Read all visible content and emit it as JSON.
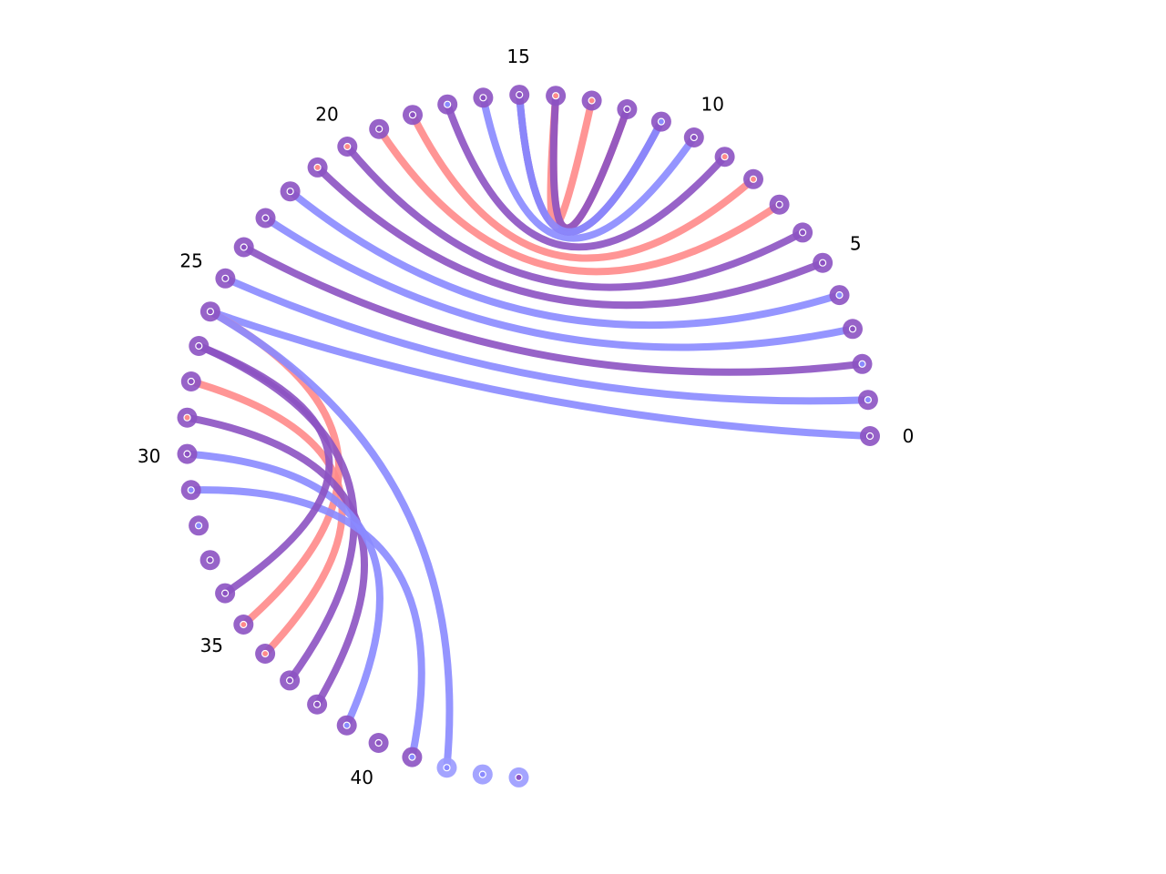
{
  "diagram": {
    "type": "arc-diagram",
    "node_count": 45,
    "tick_labels": [
      "0",
      "5",
      "10",
      "15",
      "20",
      "25",
      "30",
      "35",
      "40"
    ],
    "tick_positions": [
      0,
      5,
      10,
      15,
      20,
      25,
      30,
      35,
      40
    ],
    "colors": {
      "red": "#ff8a8a",
      "blue": "#8a8aff",
      "purple": "#8c52c2",
      "white": "#ffffff"
    },
    "node_marker": [
      "p",
      "b",
      "b",
      "p",
      "b",
      "p",
      "p",
      "p",
      "r",
      "r",
      "p",
      "b",
      "p",
      "r",
      "r",
      "p",
      "p",
      "b",
      "p",
      "p",
      "r",
      "r",
      "p",
      "p",
      "p",
      "p",
      "p",
      "p",
      "p",
      "r",
      "p",
      "b",
      "b",
      "p",
      "p",
      "r",
      "r",
      "p",
      "p",
      "b",
      "p",
      "b",
      "b",
      "b",
      "p"
    ],
    "edges": [
      {
        "source": 0,
        "target": 26,
        "color": "blue"
      },
      {
        "source": 1,
        "target": 25,
        "color": "blue"
      },
      {
        "source": 2,
        "target": 24,
        "color": "purple"
      },
      {
        "source": 3,
        "target": 23,
        "color": "blue"
      },
      {
        "source": 4,
        "target": 22,
        "color": "blue"
      },
      {
        "source": 5,
        "target": 21,
        "color": "purple"
      },
      {
        "source": 6,
        "target": 20,
        "color": "purple"
      },
      {
        "source": 7,
        "target": 19,
        "color": "red"
      },
      {
        "source": 8,
        "target": 18,
        "color": "red"
      },
      {
        "source": 9,
        "target": 17,
        "color": "purple"
      },
      {
        "source": 10,
        "target": 16,
        "color": "blue"
      },
      {
        "source": 11,
        "target": 15,
        "color": "purple"
      },
      {
        "source": 12,
        "target": 14,
        "color": "red"
      },
      {
        "source": 13,
        "target": 14,
        "color": "red"
      },
      {
        "source": 14,
        "target": 12,
        "color": "purple"
      },
      {
        "source": 15,
        "target": 11,
        "color": "blue"
      },
      {
        "source": 26,
        "target": 35,
        "color": "red"
      },
      {
        "source": 27,
        "target": 37,
        "color": "purple"
      },
      {
        "source": 28,
        "target": 36,
        "color": "red"
      },
      {
        "source": 29,
        "target": 38,
        "color": "purple"
      },
      {
        "source": 30,
        "target": 39,
        "color": "blue"
      },
      {
        "source": 31,
        "target": 41,
        "color": "blue"
      },
      {
        "source": 26,
        "target": 42,
        "color": "blue"
      },
      {
        "source": 27,
        "target": 34,
        "color": "purple"
      }
    ]
  }
}
